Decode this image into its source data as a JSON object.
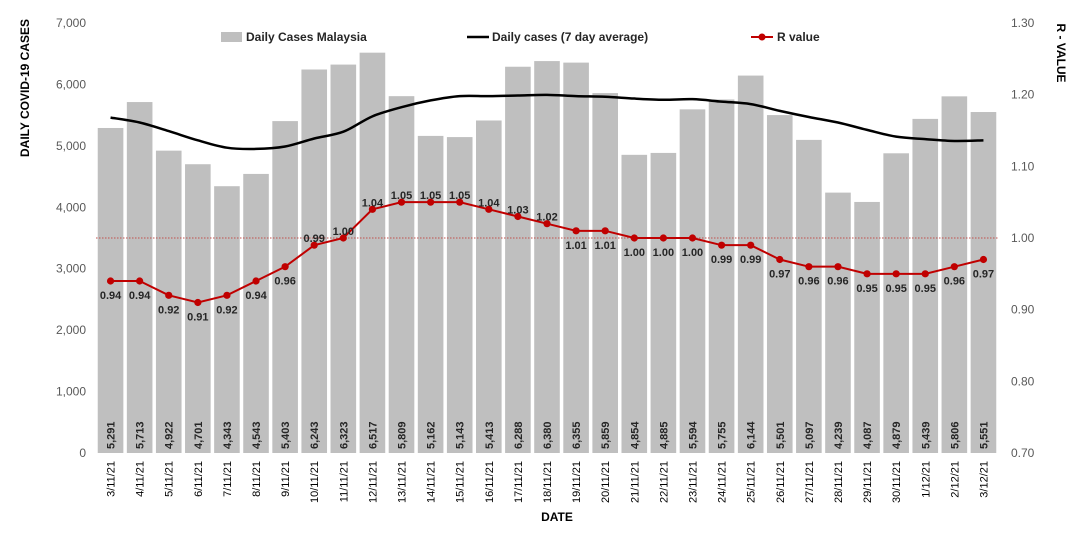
{
  "chart_data": {
    "type": "bar",
    "title": "",
    "xlabel": "DATE",
    "ylabel": "DAILY COVID-19 CASES",
    "y2label": "R - VALUE",
    "ylim": [
      0,
      7000
    ],
    "yticks": [
      0,
      1000,
      2000,
      3000,
      4000,
      5000,
      6000,
      7000
    ],
    "ytick_labels": [
      "0",
      "1,000",
      "2,000",
      "3,000",
      "4,000",
      "5,000",
      "6,000",
      "7,000"
    ],
    "y2lim": [
      0.7,
      1.3
    ],
    "y2ticks": [
      0.7,
      0.8,
      0.9,
      1.0,
      1.1,
      1.2,
      1.3
    ],
    "y2tick_labels": [
      "0.70",
      "0.80",
      "0.90",
      "1.00",
      "1.10",
      "1.20",
      "1.30"
    ],
    "legend_position": "top",
    "reference_line": {
      "axis": "y2",
      "value": 1.0,
      "style": "dotted",
      "color": "#c0504d"
    },
    "colors": {
      "bars": "#bfbfbf",
      "avg_line": "#000000",
      "r_line": "#c00000",
      "axis_text": "#595959",
      "label_text": "#262626"
    },
    "categories": [
      "3/11/21",
      "4/11/21",
      "5/11/21",
      "6/11/21",
      "7/11/21",
      "8/11/21",
      "9/11/21",
      "10/11/21",
      "11/11/21",
      "12/11/21",
      "13/11/21",
      "14/11/21",
      "15/11/21",
      "16/11/21",
      "17/11/21",
      "18/11/21",
      "19/11/21",
      "20/11/21",
      "21/11/21",
      "22/11/21",
      "23/11/21",
      "24/11/21",
      "25/11/21",
      "26/11/21",
      "27/11/21",
      "28/11/21",
      "29/11/21",
      "30/11/21",
      "1/12/21",
      "2/12/21",
      "3/12/21"
    ],
    "series": [
      {
        "name": "Daily Cases Malaysia",
        "type": "bar",
        "axis": "y",
        "values": [
          5291,
          5713,
          4922,
          4701,
          4343,
          4543,
          5403,
          6243,
          6323,
          6517,
          5809,
          5162,
          5143,
          5413,
          6288,
          6380,
          6355,
          5859,
          4854,
          4885,
          5594,
          5755,
          6144,
          5501,
          5097,
          4239,
          4087,
          4879,
          5439,
          5806,
          5551
        ],
        "value_labels": [
          "5,291",
          "5,713",
          "4,922",
          "4,701",
          "4,343",
          "4,543",
          "5,403",
          "6,243",
          "6,323",
          "6,517",
          "5,809",
          "5,162",
          "5,143",
          "5,413",
          "6,288",
          "6,380",
          "6,355",
          "5,859",
          "4,854",
          "4,885",
          "5,594",
          "5,755",
          "6,144",
          "5,501",
          "5,097",
          "4,239",
          "4,087",
          "4,879",
          "5,439",
          "5,806",
          "5,551"
        ]
      },
      {
        "name": "Daily cases (7 day average)",
        "type": "line",
        "axis": "y",
        "values": [
          5460,
          5380,
          5240,
          5090,
          4970,
          4950,
          4990,
          5120,
          5230,
          5480,
          5630,
          5740,
          5810,
          5810,
          5820,
          5830,
          5810,
          5800,
          5770,
          5750,
          5760,
          5720,
          5680,
          5570,
          5470,
          5380,
          5260,
          5150,
          5110,
          5080,
          5090
        ]
      },
      {
        "name": "R value",
        "type": "line",
        "axis": "y2",
        "values": [
          0.94,
          0.94,
          0.92,
          0.91,
          0.92,
          0.94,
          0.96,
          0.99,
          1.0,
          1.04,
          1.05,
          1.05,
          1.05,
          1.04,
          1.03,
          1.02,
          1.01,
          1.01,
          1.0,
          1.0,
          1.0,
          0.99,
          0.99,
          0.97,
          0.96,
          0.96,
          0.95,
          0.95,
          0.95,
          0.96,
          0.97
        ],
        "value_labels": [
          "0.94",
          "0.94",
          "0.92",
          "0.91",
          "0.92",
          "0.94",
          "0.96",
          "0.99",
          "1.00",
          "1.04",
          "1.05",
          "1.05",
          "1.05",
          "1.04",
          "1.03",
          "1.02",
          "1.01",
          "1.01",
          "1.00",
          "1.00",
          "1.00",
          "0.99",
          "0.99",
          "0.97",
          "0.96",
          "0.96",
          "0.95",
          "0.95",
          "0.95",
          "0.96",
          "0.97"
        ]
      }
    ]
  }
}
